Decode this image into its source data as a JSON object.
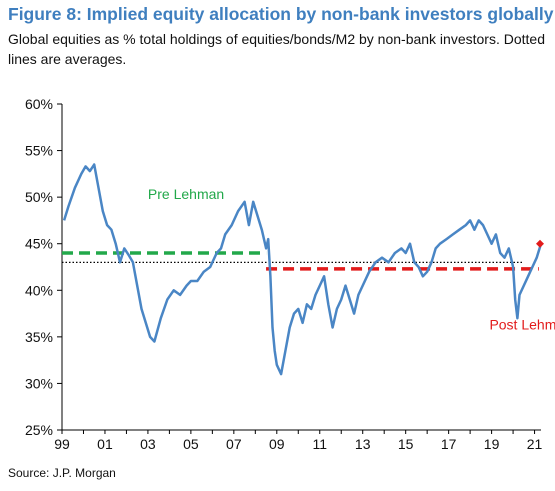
{
  "header": {
    "title": "Figure 8: Implied equity allocation by non-bank investors globally",
    "subtitle": "Global equities as % total holdings of equities/bonds/M2 by non-bank investors. Dotted lines are averages."
  },
  "footer": {
    "source": "Source: J.P. Morgan"
  },
  "colors": {
    "title": "#3f7fbf",
    "series": "#4a86c5",
    "pre_lehman": "#22a84a",
    "post_lehman": "#e21b1b",
    "overall_avg": "#000000",
    "axis": "#000000"
  },
  "chart_data": {
    "type": "line",
    "title": "",
    "xlabel": "",
    "ylabel": "",
    "x_unit": "year",
    "xlim": [
      1999.0,
      2021.3
    ],
    "ylim": [
      25,
      60
    ],
    "y_ticks": [
      25,
      30,
      35,
      40,
      45,
      50,
      55,
      60
    ],
    "y_tick_labels": [
      "25%",
      "30%",
      "35%",
      "40%",
      "45%",
      "50%",
      "55%",
      "60%"
    ],
    "x_ticks": [
      1999,
      2001,
      2003,
      2005,
      2007,
      2009,
      2011,
      2013,
      2015,
      2017,
      2019,
      2021
    ],
    "x_tick_labels": [
      "99",
      "01",
      "03",
      "05",
      "07",
      "09",
      "11",
      "13",
      "15",
      "17",
      "19",
      "21"
    ],
    "grid": false,
    "series": [
      {
        "x": [
          1999.1,
          1999.3,
          1999.6,
          1999.9,
          2000.1,
          2000.3,
          2000.5,
          2000.7,
          2000.9,
          2001.1,
          2001.3,
          2001.5,
          2001.7,
          2001.9,
          2002.1,
          2002.3,
          2002.5,
          2002.7,
          2002.9,
          2003.1,
          2003.3,
          2003.6,
          2003.9,
          2004.2,
          2004.5,
          2004.8,
          2005.0,
          2005.3,
          2005.6,
          2005.9,
          2006.2,
          2006.4,
          2006.6,
          2006.9,
          2007.2,
          2007.5,
          2007.7,
          2007.9,
          2008.1,
          2008.3,
          2008.5,
          2008.6,
          2008.7,
          2008.8,
          2008.9,
          2009.0,
          2009.2,
          2009.4,
          2009.6,
          2009.8,
          2010.0,
          2010.2,
          2010.4,
          2010.6,
          2010.8,
          2011.0,
          2011.2,
          2011.4,
          2011.6,
          2011.8,
          2012.0,
          2012.2,
          2012.4,
          2012.6,
          2012.8,
          2013.0,
          2013.3,
          2013.6,
          2013.9,
          2014.2,
          2014.5,
          2014.8,
          2015.0,
          2015.2,
          2015.4,
          2015.6,
          2015.8,
          2016.0,
          2016.2,
          2016.4,
          2016.6,
          2016.9,
          2017.2,
          2017.5,
          2017.8,
          2018.0,
          2018.2,
          2018.4,
          2018.6,
          2018.8,
          2019.0,
          2019.2,
          2019.4,
          2019.6,
          2019.8,
          2020.0,
          2020.1,
          2020.2,
          2020.3,
          2020.5,
          2020.7,
          2020.9,
          2021.1,
          2021.3
        ],
        "values": [
          47.5,
          49.0,
          51.0,
          52.5,
          53.3,
          52.8,
          53.5,
          51.0,
          48.5,
          47.0,
          46.5,
          45.0,
          43.0,
          44.5,
          43.8,
          43.0,
          40.5,
          38.0,
          36.5,
          35.0,
          34.5,
          37.0,
          39.0,
          40.0,
          39.5,
          40.5,
          41.0,
          41.0,
          42.0,
          42.5,
          44.0,
          44.5,
          46.0,
          47.0,
          48.5,
          49.5,
          47.0,
          49.5,
          48.0,
          46.5,
          44.5,
          45.5,
          41.5,
          36.0,
          33.5,
          32.0,
          31.0,
          33.5,
          36.0,
          37.5,
          38.0,
          36.5,
          38.5,
          38.0,
          39.5,
          40.5,
          41.5,
          38.5,
          36.0,
          38.0,
          39.0,
          40.5,
          39.0,
          37.5,
          39.5,
          40.5,
          42.0,
          43.0,
          43.5,
          43.0,
          44.0,
          44.5,
          44.0,
          45.0,
          43.0,
          42.5,
          41.5,
          42.0,
          43.0,
          44.5,
          45.0,
          45.5,
          46.0,
          46.5,
          47.0,
          47.5,
          46.5,
          47.5,
          47.0,
          46.0,
          45.0,
          46.0,
          44.0,
          43.5,
          44.5,
          42.5,
          39.0,
          37.0,
          39.5,
          40.5,
          41.5,
          42.5,
          43.5,
          45.0
        ],
        "color": "#4a86c5"
      }
    ],
    "reference_lines": [
      {
        "label": "Pre Lehman",
        "style": "dashed",
        "value": 44.0,
        "x_range": [
          1999.0,
          2008.5
        ],
        "color": "#22a84a"
      },
      {
        "label": "Post Lehman",
        "style": "dashed",
        "value": 42.3,
        "x_range": [
          2008.5,
          2021.2
        ],
        "color": "#e21b1b"
      },
      {
        "label": "",
        "style": "dotted",
        "value": 43.0,
        "x_range": [
          1999.0,
          2020.5
        ],
        "color": "#000000"
      }
    ],
    "annotations": [
      {
        "text": "Pre Lehman",
        "x": 2003.0,
        "y": 49.8,
        "color": "#22a84a"
      },
      {
        "text": "Post Lehman",
        "x": 2018.9,
        "y": 35.8,
        "color": "#e21b1b"
      }
    ],
    "end_marker": {
      "x": 2021.3,
      "y": 45.0,
      "color": "#e21b1b"
    }
  }
}
